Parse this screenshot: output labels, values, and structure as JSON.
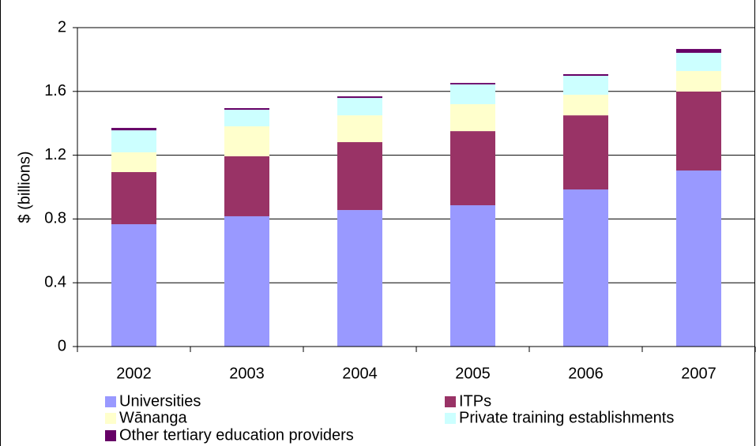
{
  "chart_data": {
    "type": "stacked_bar",
    "y_label": "$ (billions)",
    "categories": [
      "2002",
      "2003",
      "2004",
      "2005",
      "2006",
      "2007"
    ],
    "series": [
      {
        "name": "Universities",
        "color": "#9999ff",
        "values": [
          0.767,
          0.817,
          0.856,
          0.886,
          0.985,
          1.104
        ]
      },
      {
        "name": "ITPs",
        "color": "#993366",
        "values": [
          0.327,
          0.376,
          0.426,
          0.465,
          0.465,
          0.495
        ]
      },
      {
        "name": "Wānanga",
        "color": "#ffffcc",
        "values": [
          0.124,
          0.188,
          0.168,
          0.169,
          0.129,
          0.129
        ]
      },
      {
        "name": "Private training establishments",
        "color": "#ccffff",
        "values": [
          0.138,
          0.104,
          0.109,
          0.124,
          0.119,
          0.114
        ]
      },
      {
        "name": "Other tertiary education providers",
        "color": "#660066",
        "values": [
          0.015,
          0.01,
          0.01,
          0.009,
          0.01,
          0.024
        ]
      }
    ],
    "ylim": [
      0,
      2
    ],
    "yticks": [
      0,
      0.4,
      0.8,
      1.2,
      1.6,
      2
    ],
    "grid": true
  }
}
